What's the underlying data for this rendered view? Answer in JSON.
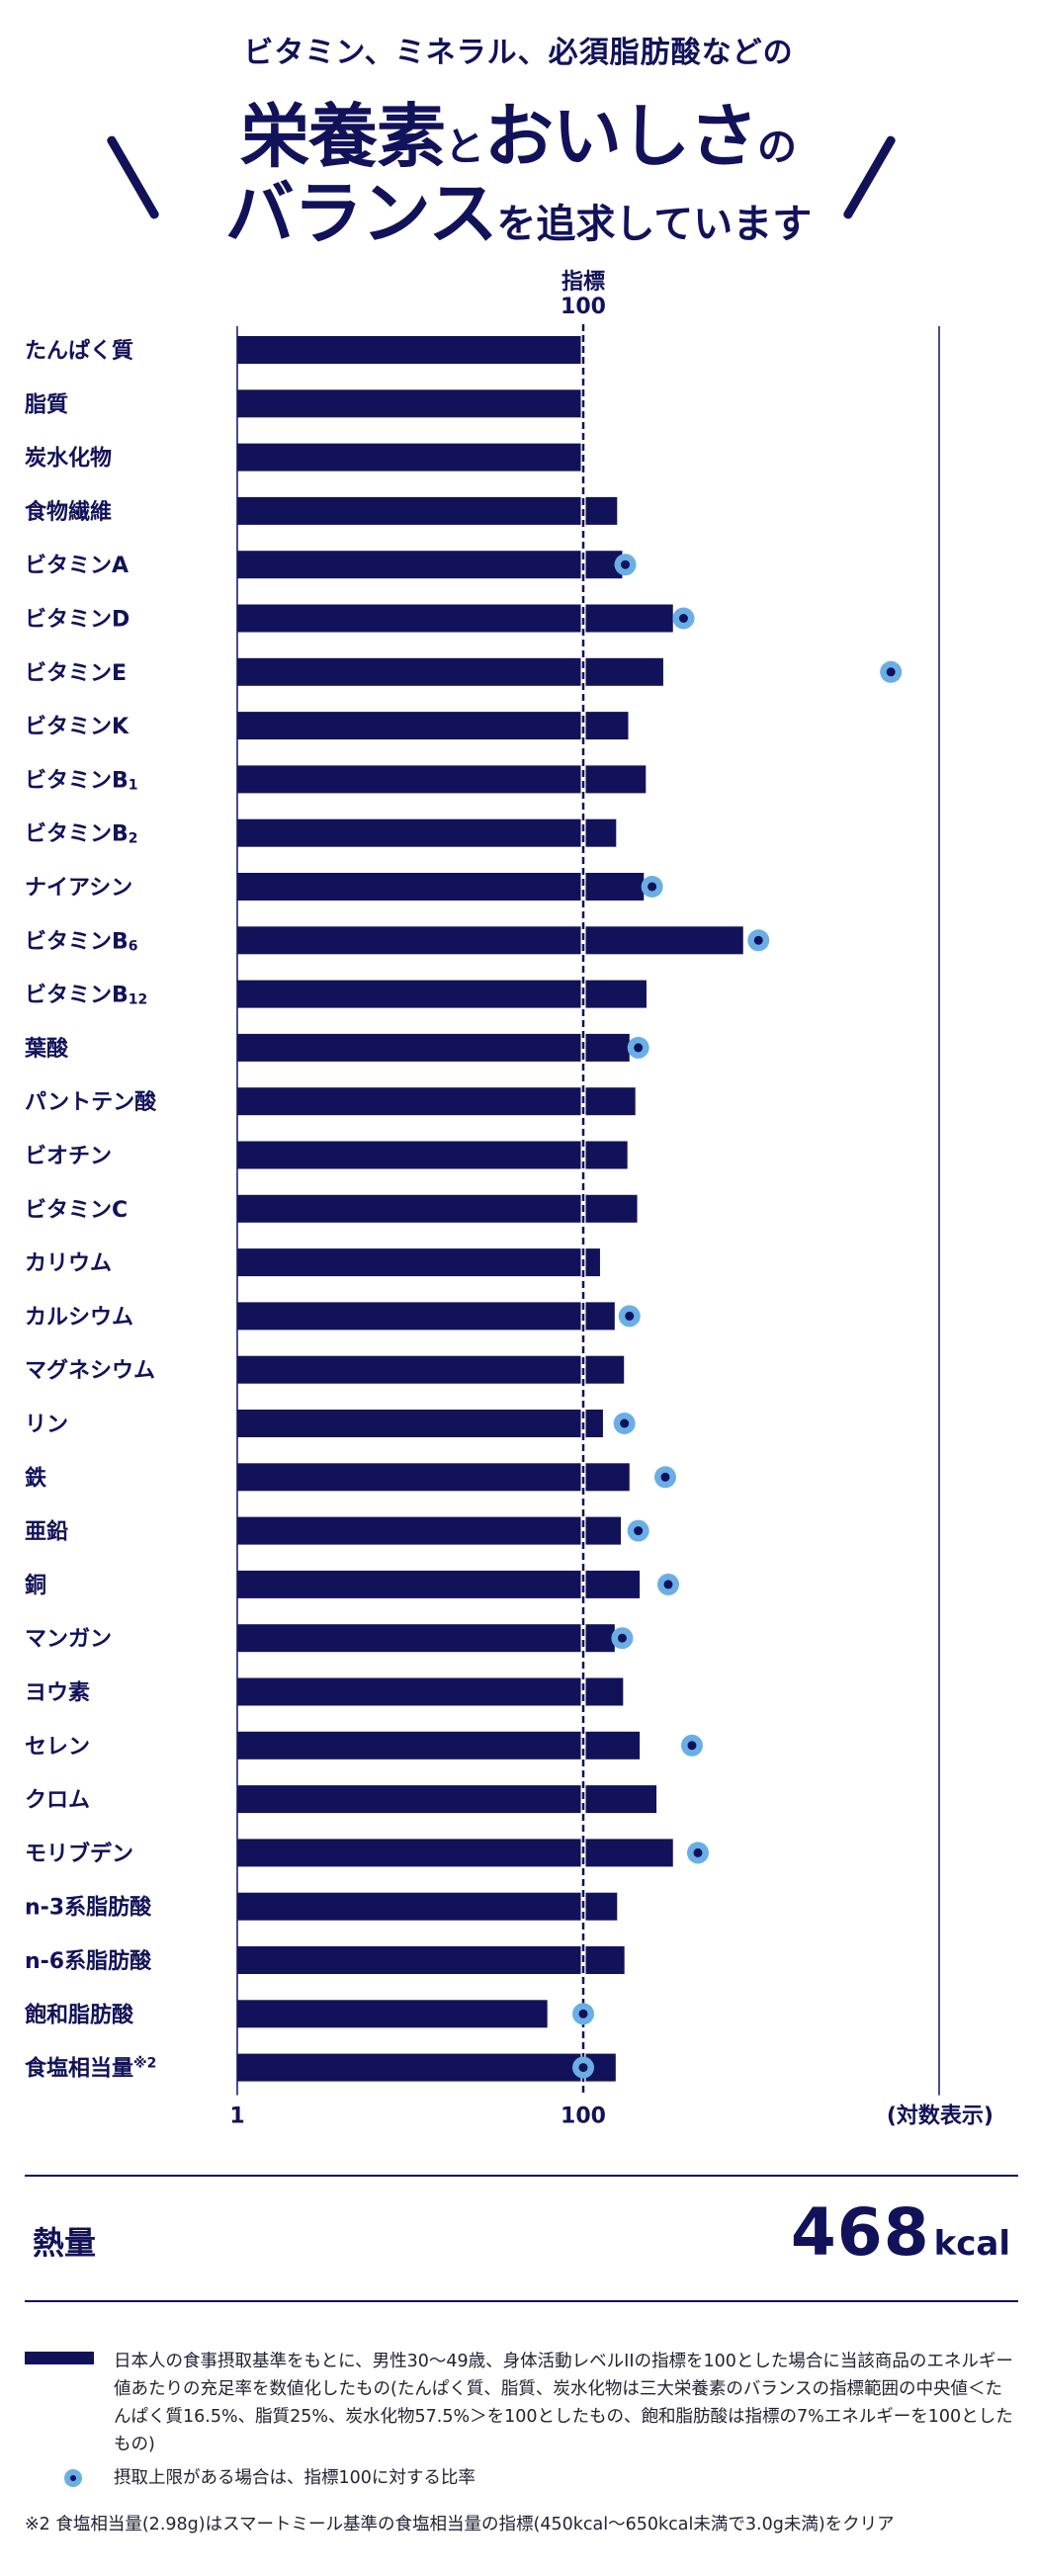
{
  "hero": {
    "line1": "ビタミン、ミネラル、必須脂肪酸などの",
    "line2_big": "栄養素",
    "line2_mid1": "と",
    "line2_big2": "おいしさ",
    "line2_mid2": "の",
    "line3_big": "バランス",
    "line3_mid": "を追求しています"
  },
  "chart_data": {
    "type": "bar",
    "scale": "log",
    "reference_label_top": "指標",
    "reference_label_bottom": "100",
    "reference_value": 100,
    "x_ticks": [
      "1",
      "100"
    ],
    "xlabel": "(対数表示)",
    "categories": [
      {
        "name": "たんぱく質",
        "sup": ""
      },
      {
        "name": "脂質",
        "sup": ""
      },
      {
        "name": "炭水化物",
        "sup": ""
      },
      {
        "name": "食物繊維",
        "sup": ""
      },
      {
        "name": "ビタミンA",
        "sup": ""
      },
      {
        "name": "ビタミンD",
        "sup": ""
      },
      {
        "name": "ビタミンE",
        "sup": ""
      },
      {
        "name": "ビタミンK",
        "sup": ""
      },
      {
        "name": "ビタミンB",
        "sup": "1"
      },
      {
        "name": "ビタミンB",
        "sup": "2"
      },
      {
        "name": "ナイアシン",
        "sup": ""
      },
      {
        "name": "ビタミンB",
        "sup": "6"
      },
      {
        "name": "ビタミンB",
        "sup": "12"
      },
      {
        "name": "葉酸",
        "sup": ""
      },
      {
        "name": "パントテン酸",
        "sup": ""
      },
      {
        "name": "ビオチン",
        "sup": ""
      },
      {
        "name": "ビタミンC",
        "sup": ""
      },
      {
        "name": "カリウム",
        "sup": ""
      },
      {
        "name": "カルシウム",
        "sup": ""
      },
      {
        "name": "マグネシウム",
        "sup": ""
      },
      {
        "name": "リン",
        "sup": ""
      },
      {
        "name": "鉄",
        "sup": ""
      },
      {
        "name": "亜鉛",
        "sup": ""
      },
      {
        "name": "銅",
        "sup": ""
      },
      {
        "name": "マンガン",
        "sup": ""
      },
      {
        "name": "ヨウ素",
        "sup": ""
      },
      {
        "name": "セレン",
        "sup": ""
      },
      {
        "name": "クロム",
        "sup": ""
      },
      {
        "name": "モリブデン",
        "sup": ""
      },
      {
        "name": "n-3系脂肪酸",
        "sup": ""
      },
      {
        "name": "n-6系脂肪酸",
        "sup": ""
      },
      {
        "name": "飽和脂肪酸",
        "sup": ""
      },
      {
        "name": "食塩相当量",
        "sup": "※2"
      }
    ],
    "values": [
      100,
      102,
      101,
      157,
      168,
      330,
      290,
      182,
      230,
      155,
      224,
      840,
      232,
      185,
      200,
      180,
      205,
      125,
      152,
      172,
      130,
      185,
      165,
      212,
      152,
      170,
      212,
      265,
      330,
      157,
      173,
      62,
      154
    ],
    "upper_limit_ratio": [
      null,
      null,
      null,
      null,
      175,
      380,
      6000,
      null,
      null,
      null,
      250,
      1030,
      null,
      208,
      null,
      null,
      null,
      null,
      185,
      null,
      173,
      298,
      208,
      310,
      168,
      null,
      425,
      null,
      460,
      null,
      null,
      100,
      100
    ],
    "colors": {
      "bar": "#12125a",
      "dot": "#6aaee6",
      "reference_line": "#12125a"
    }
  },
  "energy": {
    "label": "熱量",
    "value": "468",
    "unit": "kcal"
  },
  "legend": {
    "bar_text": "日本人の食事摂取基準をもとに、男性30〜49歳、身体活動レベルIIの指標を100とした場合に当該商品のエネルギー値あたりの充足率を数値化したもの(たんぱく質、脂質、炭水化物は三大栄養素のバランスの指標範囲の中央値＜たんぱく質16.5%、脂質25%、炭水化物57.5%＞を100としたもの、飽和脂肪酸は指標の7%エネルギーを100としたもの)",
    "dot_text": "摂取上限がある場合は、指標100に対する比率"
  },
  "footnote": "※2 食塩相当量(2.98g)はスマートミール基準の食塩相当量の指標(450kcal〜650kcal未満で3.0g未満)をクリア"
}
